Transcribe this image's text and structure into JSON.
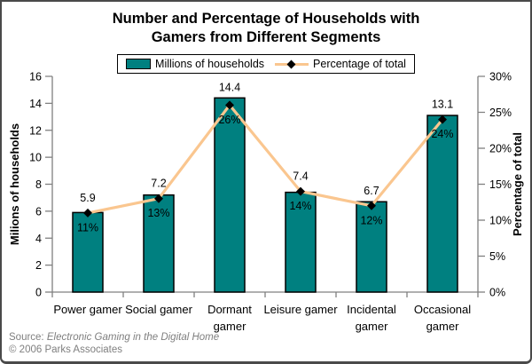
{
  "title": {
    "line1": "Number and Percentage of Households with",
    "line2": "Gamers from Different Segments"
  },
  "legend": {
    "bar_label": "Millions of households",
    "line_label": "Percentage of total"
  },
  "footer": {
    "source_prefix": "Source:",
    "source_title": "Electronic Gaming in the Digital Home",
    "copyright": "© 2006 Parks Associates"
  },
  "colors": {
    "bar_fill": "#008080",
    "bar_stroke": "#000000",
    "line": "#FAC68F",
    "marker": "#000000",
    "axis": "#808080",
    "text": "#000000",
    "footer_text": "#7f7f7f"
  },
  "chart_data": {
    "type": "bar",
    "subtype": "bar+line combo, dual axis",
    "title": "Number and Percentage of Households with Gamers from Different Segments",
    "categories": [
      "Power gamer",
      "Social gamer",
      "Dormant gamer",
      "Leisure gamer",
      "Incidental gamer",
      "Occasional gamer"
    ],
    "category_label_lines": [
      [
        "Power gamer"
      ],
      [
        "Social gamer"
      ],
      [
        "Dormant",
        "gamer"
      ],
      [
        "Leisure gamer"
      ],
      [
        "Incidental",
        "gamer"
      ],
      [
        "Occasional",
        "gamer"
      ]
    ],
    "series": [
      {
        "name": "Millions of households",
        "type": "bar",
        "axis": "left",
        "values": [
          5.9,
          7.2,
          14.4,
          7.4,
          6.7,
          13.1
        ],
        "data_labels": [
          "5.9",
          "7.2",
          "14.4",
          "7.4",
          "6.7",
          "13.1"
        ]
      },
      {
        "name": "Percentage of total",
        "type": "line",
        "axis": "right",
        "values": [
          11,
          13,
          26,
          14,
          12,
          24
        ],
        "data_labels": [
          "11%",
          "13%",
          "26%",
          "14%",
          "12%",
          "24%"
        ]
      }
    ],
    "left_axis": {
      "title": "Milions of households",
      "min": 0,
      "max": 16,
      "step": 2,
      "tick_labels": [
        "0",
        "2",
        "4",
        "6",
        "8",
        "10",
        "12",
        "14",
        "16"
      ]
    },
    "right_axis": {
      "title": "Percentage of total",
      "min": 0,
      "max": 30,
      "step": 5,
      "tick_labels": [
        "0%",
        "5%",
        "10%",
        "15%",
        "20%",
        "25%",
        "30%"
      ]
    },
    "grid": false,
    "legend_position": "top"
  }
}
